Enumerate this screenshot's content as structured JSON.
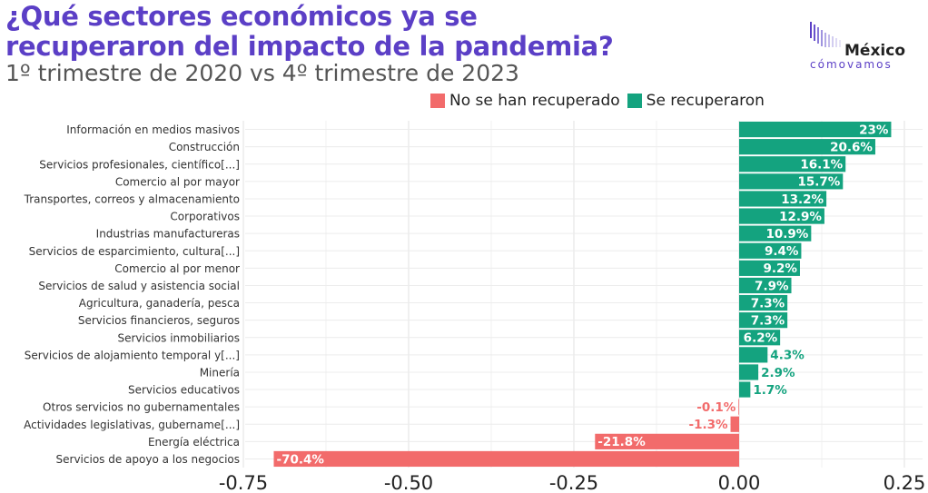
{
  "header": {
    "title_line1": "¿Qué sectores económicos ya se",
    "title_line2": "recuperaron del impacto de la pandemia?",
    "subtitle": "1º trimestre de 2020 vs 4º trimestre de 2023"
  },
  "logo": {
    "word1": "México",
    "word2": "cómovamos",
    "icon": "bar-logo-icon"
  },
  "legend": [
    {
      "label": "No se han recuperado",
      "color": "#f26b6b"
    },
    {
      "label": "Se recuperaron",
      "color": "#14a37f"
    }
  ],
  "chart_data": {
    "type": "bar",
    "orientation": "horizontal",
    "categories": [
      "Información en medios masivos",
      "Construcción",
      "Servicios profesionales, científico[...]",
      "Comercio al por mayor",
      "Transportes, correos y almacenamiento",
      "Corporativos",
      "Industrias manufactureras",
      "Servicios de esparcimiento, cultura[...]",
      "Comercio al por menor",
      "Servicios de salud y asistencia social",
      "Agricultura, ganadería, pesca",
      "Servicios financieros, seguros",
      "Servicios inmobiliarios",
      "Servicios de alojamiento temporal y[...]",
      "Minería",
      "Servicios educativos",
      "Otros servicios no gubernamentales",
      "Actividades legislativas, gubername[...]",
      "Energía eléctrica",
      "Servicios de apoyo a los negocios"
    ],
    "values": [
      0.23,
      0.206,
      0.161,
      0.157,
      0.132,
      0.129,
      0.109,
      0.094,
      0.092,
      0.079,
      0.073,
      0.073,
      0.062,
      0.043,
      0.029,
      0.017,
      -0.001,
      -0.013,
      -0.218,
      -0.704
    ],
    "data_labels": [
      "23%",
      "20.6%",
      "16.1%",
      "15.7%",
      "13.2%",
      "12.9%",
      "10.9%",
      "9.4%",
      "9.2%",
      "7.9%",
      "7.3%",
      "7.3%",
      "6.2%",
      "4.3%",
      "2.9%",
      "1.7%",
      "-0.1%",
      "-1.3%",
      "-21.8%",
      "-70.4%"
    ],
    "xlim": [
      -0.75,
      0.25
    ],
    "x_ticks": [
      -0.75,
      -0.5,
      -0.25,
      0.0,
      0.25
    ],
    "x_tick_labels": [
      "-0.75",
      "-0.50",
      "-0.25",
      "0.00",
      "0.25"
    ],
    "grid": true,
    "legend_position": "top",
    "colors": {
      "positive": "#14a37f",
      "negative": "#f26b6b"
    }
  }
}
